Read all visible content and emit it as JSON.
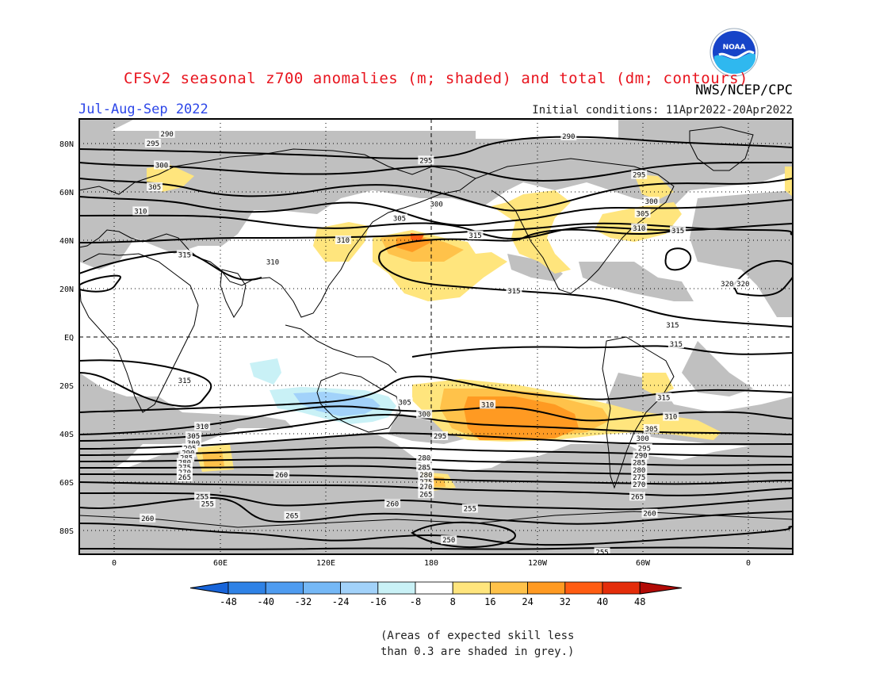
{
  "title": "CFSv2 seasonal z700 anomalies (m; shaded) and total (dm; contours)",
  "org": "NWS/NCEP/CPC",
  "logo_text": "NOAA",
  "season": "Jul-Aug-Sep 2022",
  "initial_conditions": "Initial conditions: 11Apr2022-20Apr2022",
  "lat_labels": [
    "80N",
    "60N",
    "40N",
    "20N",
    "EQ",
    "20S",
    "40S",
    "60S",
    "80S"
  ],
  "lon_labels": [
    "0",
    "60E",
    "120E",
    "180",
    "120W",
    "60W",
    "0"
  ],
  "colorbar": {
    "labels": [
      "-48",
      "-40",
      "-32",
      "-24",
      "-16",
      "-8",
      "8",
      "16",
      "24",
      "32",
      "40",
      "48"
    ],
    "colors": [
      "#1764d9",
      "#2f82e6",
      "#4f9cf0",
      "#75b8f6",
      "#a2d2fa",
      "#c9f1f6",
      "#ffffff",
      "#ffe57d",
      "#ffc24a",
      "#ff9a22",
      "#ff5c12",
      "#e42d0a",
      "#b20a06"
    ]
  },
  "skill_note_line1": "(Areas of expected skill less",
  "skill_note_line2": "than 0.3 are shaded in grey.)",
  "contour_labels": [
    {
      "t": "290",
      "lon": 30,
      "lat": 84
    },
    {
      "t": "290",
      "lon": -102,
      "lat": 83
    },
    {
      "t": "295",
      "lon": 22,
      "lat": 80
    },
    {
      "t": "295",
      "lon": 177,
      "lat": 73
    },
    {
      "t": "295",
      "lon": -62,
      "lat": 67
    },
    {
      "t": "300",
      "lon": 27,
      "lat": 71
    },
    {
      "t": "300",
      "lon": 183,
      "lat": 55
    },
    {
      "t": "300",
      "lon": -55,
      "lat": 56
    },
    {
      "t": "305",
      "lon": 23,
      "lat": 62
    },
    {
      "t": "305",
      "lon": 162,
      "lat": 49
    },
    {
      "t": "305",
      "lon": -60,
      "lat": 51
    },
    {
      "t": "310",
      "lon": 15,
      "lat": 52
    },
    {
      "t": "310",
      "lon": 130,
      "lat": 40
    },
    {
      "t": "310",
      "lon": -62,
      "lat": 45
    },
    {
      "t": "310",
      "lon": 90,
      "lat": 31
    },
    {
      "t": "315",
      "lon": 40,
      "lat": 34
    },
    {
      "t": "315",
      "lon": -155,
      "lat": 42
    },
    {
      "t": "315",
      "lon": -40,
      "lat": 44
    },
    {
      "t": "315",
      "lon": -133,
      "lat": 19
    },
    {
      "t": "315",
      "lon": -43,
      "lat": 5
    },
    {
      "t": "315",
      "lon": -41,
      "lat": -3
    },
    {
      "t": "320",
      "lon": -3,
      "lat": 22
    },
    {
      "t": "320",
      "lon": -12,
      "lat": 22
    },
    {
      "t": "315",
      "lon": 40,
      "lat": -18
    },
    {
      "t": "315",
      "lon": -48,
      "lat": -25
    },
    {
      "t": "305",
      "lon": 165,
      "lat": -27
    },
    {
      "t": "300",
      "lon": 176,
      "lat": -32
    },
    {
      "t": "310",
      "lon": -148,
      "lat": -28
    },
    {
      "t": "310",
      "lon": -44,
      "lat": -33
    },
    {
      "t": "305",
      "lon": -55,
      "lat": -38
    },
    {
      "t": "295",
      "lon": 185,
      "lat": -41
    },
    {
      "t": "310",
      "lon": 50,
      "lat": -37
    },
    {
      "t": "305",
      "lon": 45,
      "lat": -41
    },
    {
      "t": "300",
      "lon": 45,
      "lat": -44
    },
    {
      "t": "295",
      "lon": 43,
      "lat": -46
    },
    {
      "t": "290",
      "lon": 42,
      "lat": -48
    },
    {
      "t": "285",
      "lon": 41,
      "lat": -50
    },
    {
      "t": "280",
      "lon": 40,
      "lat": -52
    },
    {
      "t": "275",
      "lon": 40,
      "lat": -54
    },
    {
      "t": "270",
      "lon": 40,
      "lat": -56
    },
    {
      "t": "265",
      "lon": 40,
      "lat": -58
    },
    {
      "t": "300",
      "lon": -60,
      "lat": -42
    },
    {
      "t": "295",
      "lon": -59,
      "lat": -46
    },
    {
      "t": "290",
      "lon": -61,
      "lat": -49
    },
    {
      "t": "285",
      "lon": -62,
      "lat": -52
    },
    {
      "t": "280",
      "lon": -62,
      "lat": -55
    },
    {
      "t": "275",
      "lon": -62,
      "lat": -58
    },
    {
      "t": "270",
      "lon": -62,
      "lat": -61
    },
    {
      "t": "265",
      "lon": -63,
      "lat": -66
    },
    {
      "t": "260",
      "lon": -56,
      "lat": -73
    },
    {
      "t": "280",
      "lon": 176,
      "lat": -50
    },
    {
      "t": "285",
      "lon": 176,
      "lat": -54
    },
    {
      "t": "280",
      "lon": 177,
      "lat": -57
    },
    {
      "t": "275",
      "lon": 177,
      "lat": -60
    },
    {
      "t": "270",
      "lon": 177,
      "lat": -62
    },
    {
      "t": "265",
      "lon": 177,
      "lat": -65
    },
    {
      "t": "260",
      "lon": 95,
      "lat": -57
    },
    {
      "t": "260",
      "lon": 158,
      "lat": -69
    },
    {
      "t": "255",
      "lon": 50,
      "lat": -66
    },
    {
      "t": "255",
      "lon": 53,
      "lat": -69
    },
    {
      "t": "255",
      "lon": -158,
      "lat": -71
    },
    {
      "t": "255",
      "lon": -83,
      "lat": -89
    },
    {
      "t": "260",
      "lon": 19,
      "lat": -75
    },
    {
      "t": "265",
      "lon": 101,
      "lat": -74
    },
    {
      "t": "250",
      "lon": -170,
      "lat": -84
    }
  ]
}
